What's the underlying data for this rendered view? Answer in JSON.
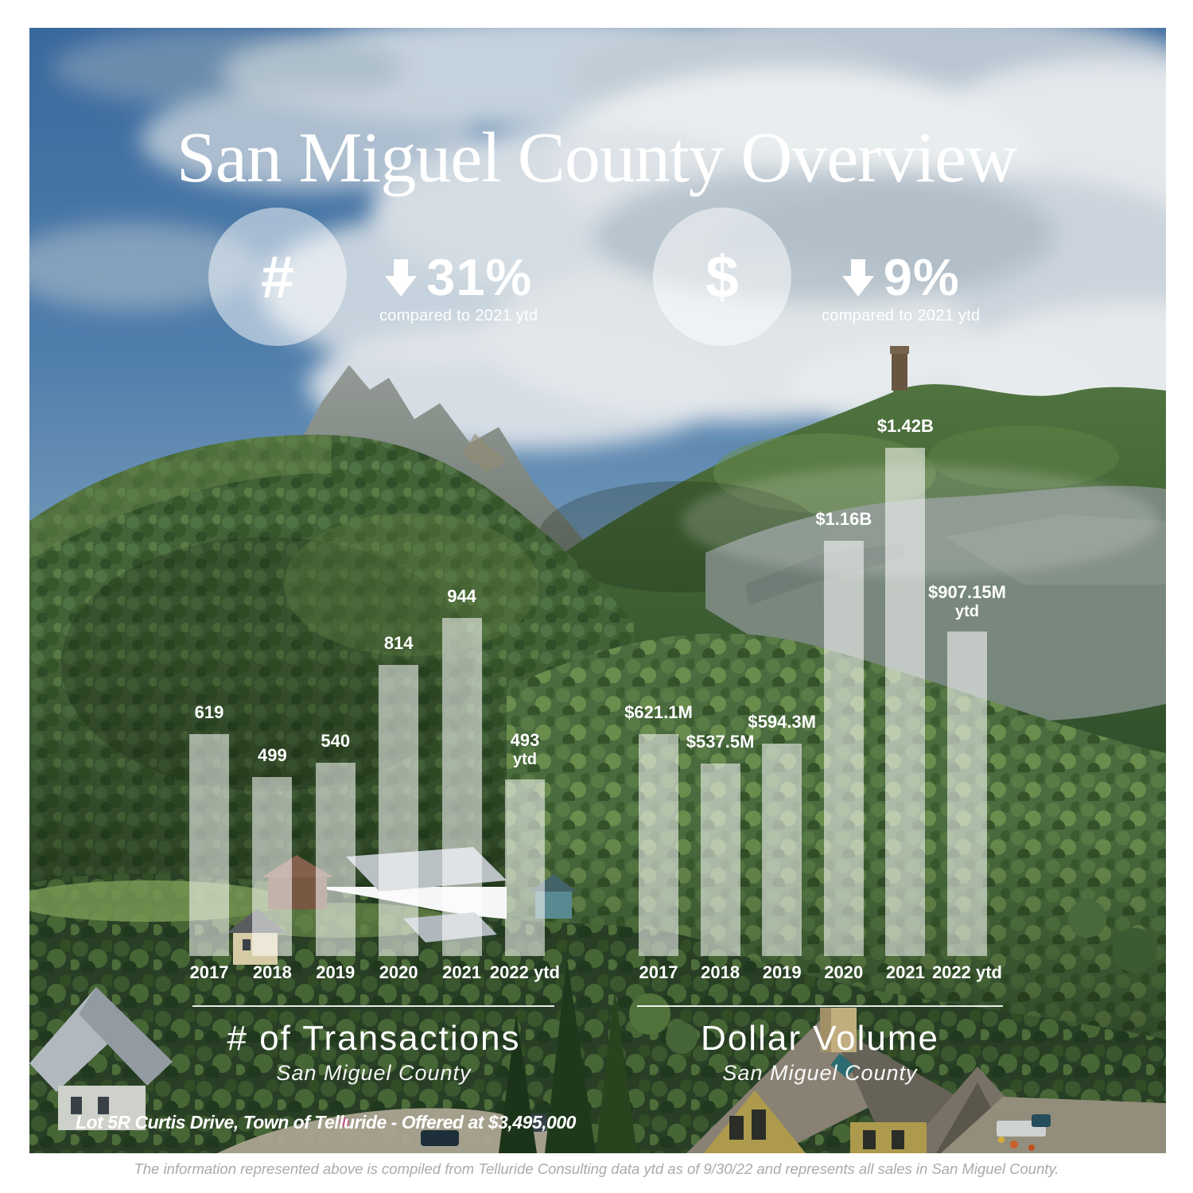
{
  "page": {
    "title": "San Miguel County Overview",
    "caption": "Lot 5R Curtis Drive, Town of Telluride - Offered at $3,495,000",
    "footer": "The information represented above is compiled from Telluride Consulting data ytd as of 9/30/22 and represents all sales in San Miguel County."
  },
  "stats": [
    {
      "icon": "hash-icon",
      "symbol": "#",
      "direction": "down",
      "change": "31%",
      "note": "compared to 2021 ytd"
    },
    {
      "icon": "dollar-icon",
      "symbol": "$",
      "direction": "down",
      "change": "9%",
      "note": "compared to 2021 ytd"
    }
  ],
  "chart_data": [
    {
      "type": "bar",
      "title": "# of Transactions",
      "subtitle": "San Miguel County",
      "categories": [
        "2017",
        "2018",
        "2019",
        "2020",
        "2021",
        "2022 ytd"
      ],
      "values": [
        619,
        499,
        540,
        814,
        944,
        493
      ],
      "bar_labels": [
        "619",
        "499",
        "540",
        "814",
        "944",
        "493"
      ],
      "bar_sublabels": [
        "",
        "",
        "",
        "",
        "",
        "ytd"
      ],
      "unit": "transactions",
      "xlabel": "",
      "ylabel": "",
      "ylim": [
        0,
        944
      ],
      "grid": false,
      "legend": "none"
    },
    {
      "type": "bar",
      "title": "Dollar Volume",
      "subtitle": "San Miguel County",
      "categories": [
        "2017",
        "2018",
        "2019",
        "2020",
        "2021",
        "2022 ytd"
      ],
      "values": [
        621.1,
        537.5,
        594.3,
        1160,
        1420,
        907.15
      ],
      "bar_labels": [
        "$621.1M",
        "$537.5M",
        "$594.3M",
        "$1.16B",
        "$1.42B",
        "$907.15M"
      ],
      "bar_sublabels": [
        "",
        "",
        "",
        "",
        "",
        "ytd"
      ],
      "unit": "USD millions",
      "xlabel": "",
      "ylabel": "",
      "ylim": [
        0,
        1420
      ],
      "grid": false,
      "legend": "none"
    }
  ],
  "colors": {
    "bar_fill": "rgba(255,255,255,0.55)",
    "text": "#ffffff",
    "footer_text": "#a7abae",
    "sky": "#3c6ca3",
    "forest": "#3c5c30"
  }
}
